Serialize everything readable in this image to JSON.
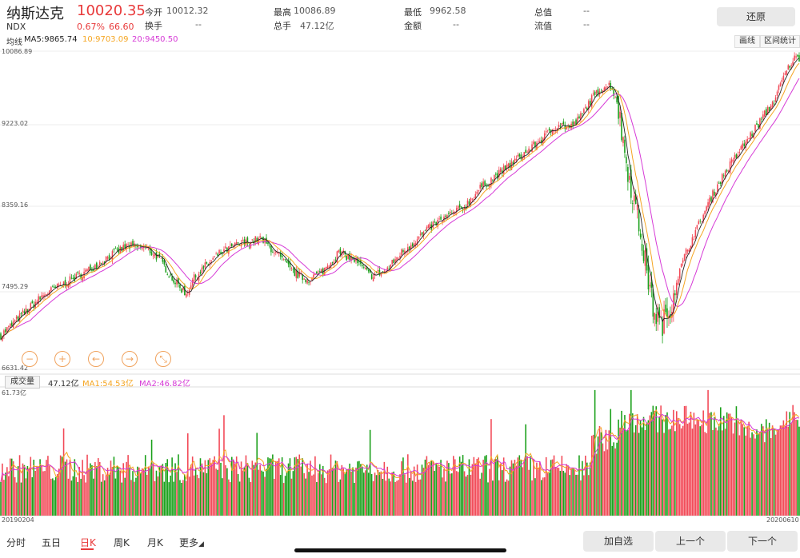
{
  "header": {
    "name": "纳斯达克",
    "price": "10020.35",
    "code": "NDX",
    "change_pct": "0.67%",
    "change": "66.60",
    "stats": [
      {
        "label": "今开",
        "value": "10012.32",
        "red": true
      },
      {
        "label": "换手",
        "value": "--",
        "red": false
      },
      {
        "label": "最高",
        "value": "10086.89",
        "red": true
      },
      {
        "label": "总手",
        "value": "47.12亿",
        "red": false
      },
      {
        "label": "最低",
        "value": "9962.58",
        "red": true
      },
      {
        "label": "金额",
        "value": "--",
        "red": false
      },
      {
        "label": "总值",
        "value": "--",
        "red": false
      },
      {
        "label": "流值",
        "value": "--",
        "red": false
      }
    ],
    "restore_label": "还原"
  },
  "ma_info": {
    "title": "均线",
    "ma5": "MA5:9865.74",
    "ma10": "10:9703.09",
    "ma20": "20:9450.50",
    "draw_label": "画线",
    "range_label": "区间统计"
  },
  "price_axis": {
    "labels": [
      "10086.89",
      "9223.02",
      "8359.16",
      "7495.29",
      "6631.42"
    ]
  },
  "volume": {
    "tab_label": "成交量",
    "value": "47.12亿",
    "ma1": "MA1:54.53亿",
    "ma2": "MA2:46.82亿",
    "axis_top": "61.73亿",
    "start_date": "20190204",
    "end_date": "20200610"
  },
  "controls": {
    "zoom_out_icon": "minus-circle-icon",
    "zoom_in_icon": "plus-circle-icon",
    "prev_icon": "arrow-left-circle-icon",
    "next_icon": "arrow-right-circle-icon",
    "reset_icon": "compress-circle-icon"
  },
  "nav": {
    "tabs": [
      "分时",
      "五日",
      "日K",
      "周K",
      "月K",
      "更多"
    ],
    "active_tab": "日K",
    "add_watch": "加自选",
    "prev": "上一个",
    "next": "下一个"
  },
  "colors": {
    "up": "#f24957",
    "down": "#1aa01a",
    "ma5": "#222222",
    "ma10": "#f5a623",
    "ma20": "#d63ad6"
  },
  "chart_data": {
    "type": "candlestick",
    "y_range": [
      6631.42,
      10086.89
    ],
    "x_range": [
      "20190204",
      "20200610"
    ],
    "trend_anchors": [
      [
        0,
        7000
      ],
      [
        15,
        7250
      ],
      [
        28,
        7450
      ],
      [
        40,
        7560
      ],
      [
        55,
        7700
      ],
      [
        68,
        7850
      ],
      [
        80,
        7970
      ],
      [
        92,
        7950
      ],
      [
        100,
        7850
      ],
      [
        110,
        7600
      ],
      [
        118,
        7450
      ],
      [
        122,
        7600
      ],
      [
        130,
        7750
      ],
      [
        140,
        7900
      ],
      [
        150,
        7980
      ],
      [
        165,
        8050
      ],
      [
        175,
        7900
      ],
      [
        185,
        7700
      ],
      [
        195,
        7600
      ],
      [
        205,
        7700
      ],
      [
        215,
        7900
      ],
      [
        225,
        7820
      ],
      [
        235,
        7650
      ],
      [
        245,
        7700
      ],
      [
        255,
        7900
      ],
      [
        265,
        8050
      ],
      [
        275,
        8200
      ],
      [
        285,
        8300
      ],
      [
        295,
        8400
      ],
      [
        305,
        8600
      ],
      [
        320,
        8800
      ],
      [
        335,
        9000
      ],
      [
        345,
        9150
      ],
      [
        355,
        9300
      ],
      [
        362,
        9250
      ],
      [
        368,
        9350
      ],
      [
        375,
        9550
      ],
      [
        383,
        9700
      ],
      [
        388,
        9720
      ],
      [
        392,
        9550
      ],
      [
        396,
        9100
      ],
      [
        400,
        8700
      ],
      [
        405,
        8300
      ],
      [
        410,
        7800
      ],
      [
        415,
        7300
      ],
      [
        420,
        7100
      ],
      [
        425,
        7250
      ],
      [
        430,
        7600
      ],
      [
        436,
        7900
      ],
      [
        444,
        8200
      ],
      [
        452,
        8500
      ],
      [
        460,
        8750
      ],
      [
        468,
        8950
      ],
      [
        476,
        9150
      ],
      [
        484,
        9350
      ],
      [
        492,
        9550
      ],
      [
        498,
        9800
      ],
      [
        504,
        10000
      ],
      [
        508,
        10020
      ]
    ],
    "n": 509
  }
}
